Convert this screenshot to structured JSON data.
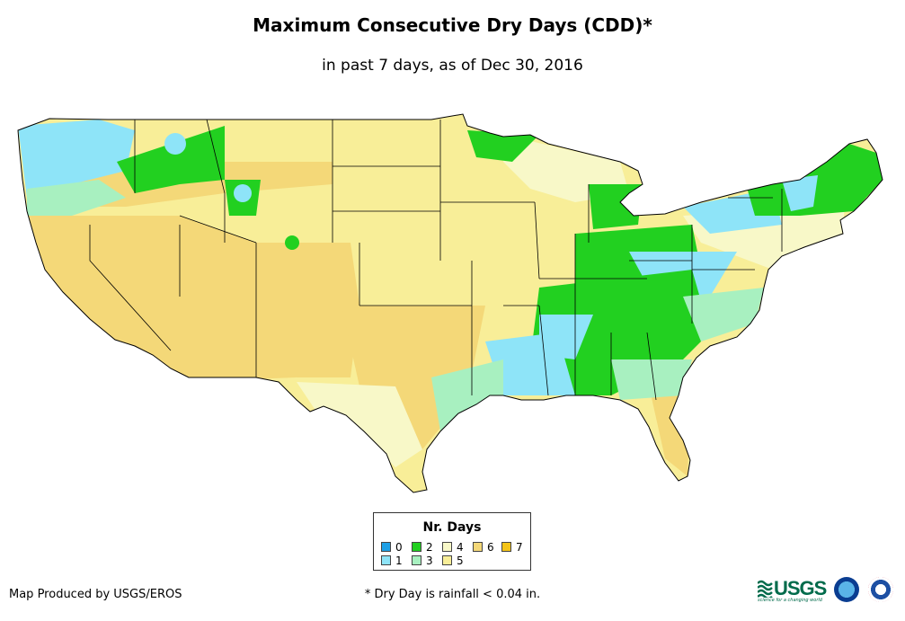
{
  "title": "Maximum Consecutive Dry Days (CDD)*",
  "subtitle": "in past 7 days, as of Dec 30, 2016",
  "legend": {
    "title": "Nr. Days",
    "items": [
      {
        "label": "0",
        "color": "#1ea0e6"
      },
      {
        "label": "1",
        "color": "#8ee4f8"
      },
      {
        "label": "2",
        "color": "#22d020"
      },
      {
        "label": "3",
        "color": "#a8f0c0"
      },
      {
        "label": "4",
        "color": "#f8f8c8"
      },
      {
        "label": "5",
        "color": "#f8ee98"
      },
      {
        "label": "6",
        "color": "#f4d878"
      },
      {
        "label": "7",
        "color": "#f4c418"
      }
    ]
  },
  "credit": "Map Produced by USGS/EROS",
  "footnote": "* Dry Day is rainfall < 0.04 in.",
  "logos": {
    "usgs": "USGS",
    "usgs_tagline": "science for a changing world"
  },
  "colors": {
    "state_border": "#000000",
    "ocean": "#ffffff"
  }
}
